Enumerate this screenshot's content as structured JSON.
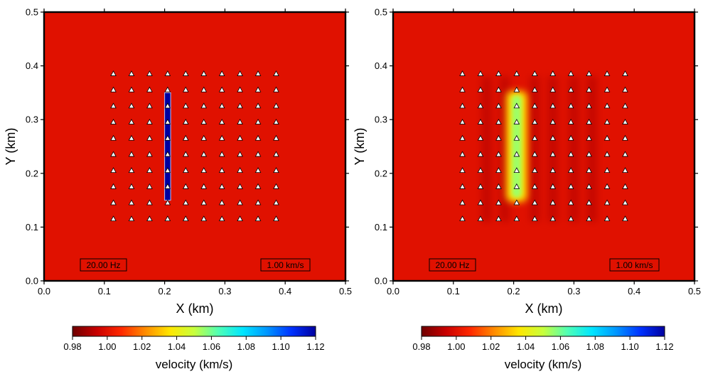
{
  "colormap": [
    "#6e0000",
    "#c80000",
    "#ff2800",
    "#ff8c00",
    "#ffe600",
    "#c8ff3c",
    "#50ffb4",
    "#00e6ff",
    "#0096ff",
    "#0032ff",
    "#0000a0"
  ],
  "chart_data": [
    {
      "type": "heatmap",
      "xlabel": "X (km)",
      "ylabel": "Y (km)",
      "xlim": [
        0.0,
        0.5
      ],
      "ylim": [
        0.0,
        0.5
      ],
      "xticks": [
        "0.0",
        "0.1",
        "0.2",
        "0.3",
        "0.4",
        "0.5"
      ],
      "yticks": [
        "0.0",
        "0.1",
        "0.2",
        "0.3",
        "0.4",
        "0.5"
      ],
      "background_velocity": 1.0,
      "anomaly": {
        "x": [
          0.2,
          0.21
        ],
        "y": [
          0.15,
          0.35
        ],
        "velocity": 1.12
      },
      "receivers": {
        "x0": 0.115,
        "dx": 0.03,
        "nx": 10,
        "y0": 0.115,
        "dy": 0.03,
        "ny": 10
      },
      "frequency_label": "20.00 Hz",
      "velocity_label": "1.00 km/s",
      "colorbar": {
        "label": "velocity (km/s)",
        "range": [
          0.98,
          1.12
        ],
        "ticks": [
          "0.98",
          "1.00",
          "1.02",
          "1.04",
          "1.06",
          "1.08",
          "1.10",
          "1.12"
        ]
      }
    },
    {
      "type": "heatmap",
      "xlabel": "X (km)",
      "ylabel": "Y (km)",
      "xlim": [
        0.0,
        0.5
      ],
      "ylim": [
        0.0,
        0.5
      ],
      "xticks": [
        "0.0",
        "0.1",
        "0.2",
        "0.3",
        "0.4",
        "0.5"
      ],
      "yticks": [
        "0.0",
        "0.1",
        "0.2",
        "0.3",
        "0.4",
        "0.5"
      ],
      "background_velocity": 1.0,
      "recovered_anomaly": {
        "x": [
          0.197,
          0.213
        ],
        "y": [
          0.155,
          0.345
        ],
        "peak_velocity": 1.055
      },
      "artifact_columns_x": [
        0.155,
        0.185,
        0.235,
        0.265,
        0.3,
        0.33
      ],
      "artifact_velocity": 0.99,
      "receivers": {
        "x0": 0.115,
        "dx": 0.03,
        "nx": 10,
        "y0": 0.115,
        "dy": 0.03,
        "ny": 10
      },
      "frequency_label": "20.00 Hz",
      "velocity_label": "1.00 km/s",
      "colorbar": {
        "label": "velocity (km/s)",
        "range": [
          0.98,
          1.12
        ],
        "ticks": [
          "0.98",
          "1.00",
          "1.02",
          "1.04",
          "1.06",
          "1.08",
          "1.10",
          "1.12"
        ]
      }
    }
  ]
}
